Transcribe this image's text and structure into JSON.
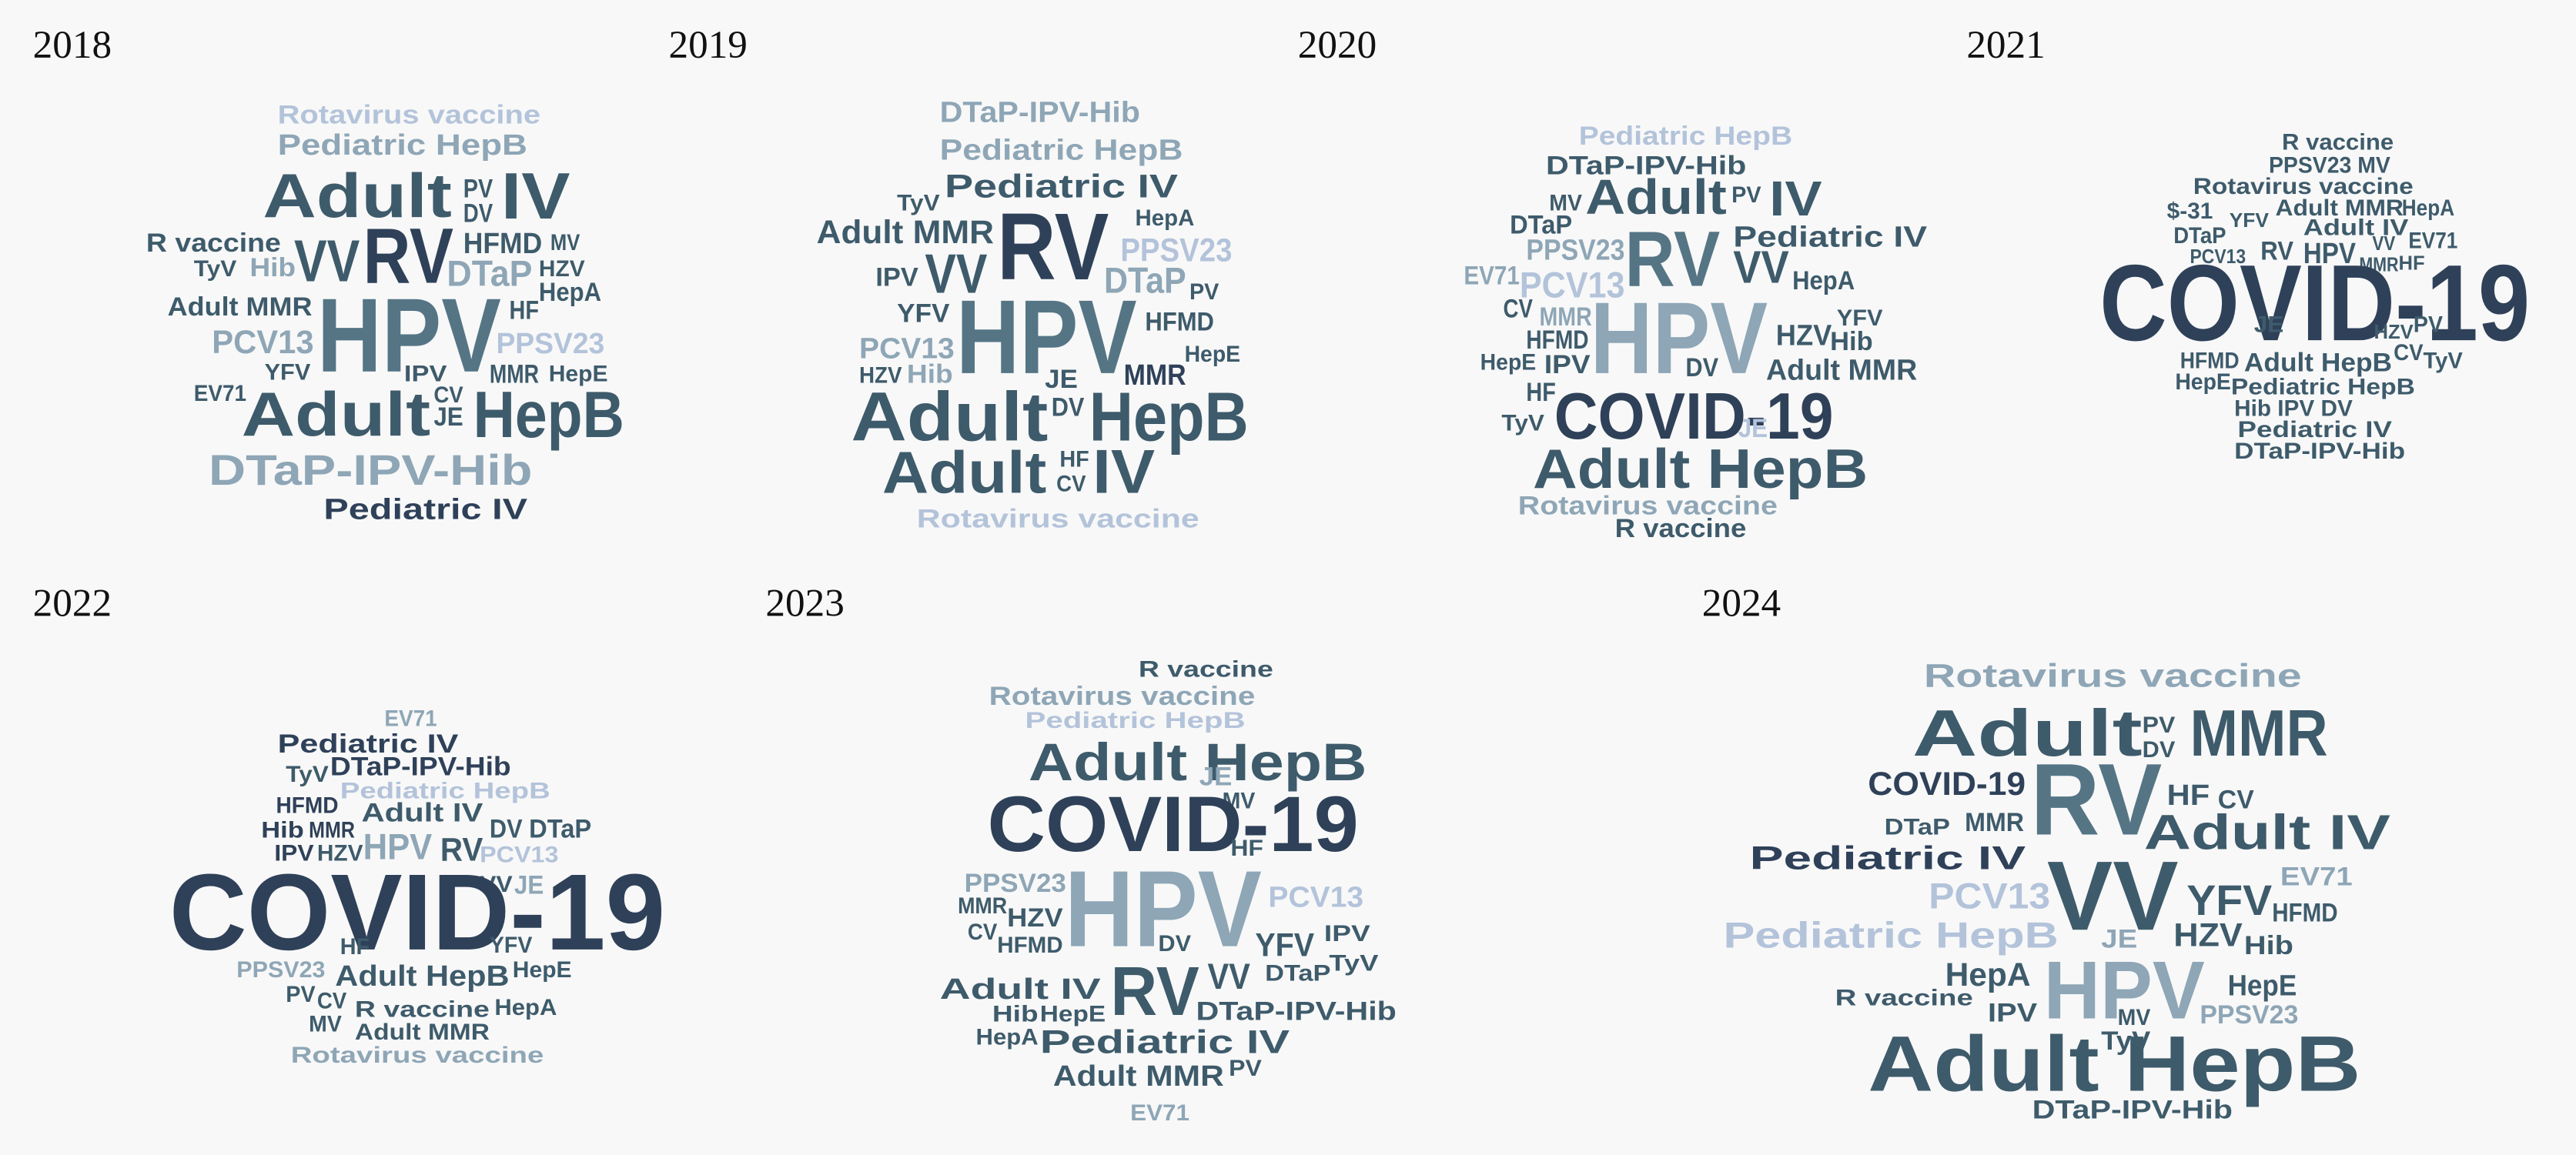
{
  "panels": [
    {
      "title": "2018",
      "words": [
        "Rotavirus vaccine",
        "Pediatric HepB",
        "Adult",
        "PV",
        "DV",
        "IV",
        "RV",
        "HFMD",
        "MV",
        "R vaccine",
        "TyV",
        "Hib",
        "VV",
        "DTaP",
        "HZV",
        "HepA",
        "Adult MMR",
        "HF",
        "HPV",
        "PCV13",
        "PPSV23",
        "YFV",
        "IPV",
        "MMR",
        "HepE",
        "EV71",
        "CV",
        "JE",
        "Adult",
        "HepB",
        "DTaP-IPV-Hib",
        "Pediatric IV"
      ]
    },
    {
      "title": "2019",
      "words": [
        "DTaP-IPV-Hib",
        "Pediatric HepB",
        "Pediatric IV",
        "TyV",
        "HepA",
        "RV",
        "Adult MMR",
        "PPSV23",
        "IPV",
        "VV",
        "DTaP",
        "PV",
        "YFV",
        "HPV",
        "HFMD",
        "PCV13",
        "HepE",
        "HZV",
        "Hib",
        "JE",
        "MMR",
        "Adult",
        "DV",
        "HepB",
        "Adult",
        "HF",
        "CV",
        "IV",
        "Rotavirus vaccine"
      ]
    },
    {
      "title": "2020",
      "words": [
        "Pediatric HepB",
        "DTaP-IPV-Hib",
        "MV",
        "Adult",
        "PV",
        "IV",
        "DTaP",
        "PPSV23",
        "RV",
        "Pediatric IV",
        "VV",
        "HepA",
        "EV71",
        "PCV13",
        "CV",
        "MMR",
        "HPV",
        "YFV",
        "HZV",
        "Hib",
        "HFMD",
        "HepE",
        "IPV",
        "DV",
        "Adult MMR",
        "HF",
        "COVID-19",
        "JE",
        "TyV",
        "Adult HepB",
        "Rotavirus vaccine",
        "R vaccine"
      ]
    },
    {
      "title": "2021",
      "words": [
        "R vaccine",
        "PPSV23 MV",
        "Rotavirus vaccine",
        "$-31",
        "Adult MMR",
        "HepA",
        "DTaP",
        "YFV",
        "Adult IV",
        "EV71",
        "PCV13",
        "RV",
        "HPV",
        "VV",
        "MMR",
        "HF",
        "COVID-19",
        "JE",
        "HZV",
        "PV",
        "HFMD",
        "Adult HepB",
        "CV",
        "TyV",
        "HepE",
        "Pediatric HepB",
        "Hib IPV DV",
        "Pediatric IV",
        "DTaP-IPV-Hib"
      ]
    },
    {
      "title": "2022",
      "words": [
        "EV71",
        "Pediatric IV",
        "TyV",
        "DTaP-IPV-Hib",
        "Pediatric HepB",
        "HFMD",
        "Adult IV",
        "Hib",
        "MMR",
        "HPV",
        "IPV",
        "HZV",
        "RV",
        "DV",
        "DTaP",
        "PCV13",
        "VV",
        "JE",
        "COVID-19",
        "HF",
        "YFV",
        "HepE",
        "PPSV23",
        "Adult HepB",
        "PV",
        "CV",
        "R vaccine",
        "HepA",
        "MV",
        "Adult MMR",
        "Rotavirus vaccine"
      ]
    },
    {
      "title": "2023",
      "words": [
        "R vaccine",
        "Rotavirus vaccine",
        "Pediatric HepB",
        "Adult HepB",
        "JE",
        "MV",
        "COVID-19",
        "HF",
        "PPSV23",
        "HPV",
        "PCV13",
        "MMR",
        "HZV",
        "CV",
        "HFMD",
        "DV",
        "YFV",
        "IPV",
        "TyV",
        "VV",
        "DTaP",
        "Adult IV",
        "RV",
        "Hib",
        "HepE",
        "DTaP-IPV-Hib",
        "HepA",
        "Pediatric IV",
        "Adult MMR",
        "PV",
        "EV71"
      ]
    },
    {
      "title": "2024",
      "words": [
        "Rotavirus vaccine",
        "Adult",
        "PV",
        "DV",
        "MMR",
        "COVID-19",
        "RV",
        "HF",
        "CV",
        "DTaP",
        "MMR",
        "Adult IV",
        "Pediatric IV",
        "VV",
        "EV71",
        "PCV13",
        "YFV",
        "HFMD",
        "Pediatric HepB",
        "JE",
        "HZV",
        "Hib",
        "HepA",
        "HPV",
        "HepE",
        "R vaccine",
        "IPV",
        "MV",
        "PPSV23",
        "TyV",
        "Adult HepB",
        "DTaP-IPV-Hib"
      ]
    }
  ]
}
